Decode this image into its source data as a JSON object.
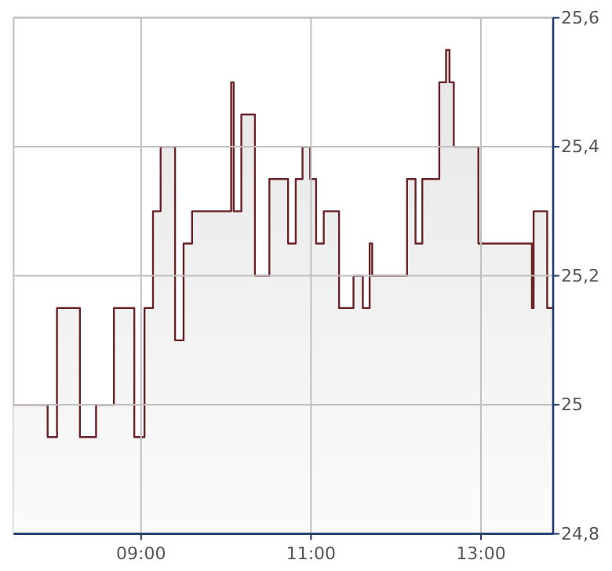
{
  "chart_data": {
    "type": "area",
    "x": [
      7.5,
      7.9,
      7.9,
      8.01,
      8.01,
      8.28,
      8.28,
      8.47,
      8.47,
      8.68,
      8.68,
      8.92,
      8.92,
      9.04,
      9.04,
      9.14,
      9.14,
      9.23,
      9.23,
      9.4,
      9.4,
      9.5,
      9.5,
      9.6,
      9.6,
      10.06,
      10.06,
      10.09,
      10.09,
      10.18,
      10.18,
      10.34,
      10.34,
      10.51,
      10.51,
      10.73,
      10.73,
      10.82,
      10.82,
      10.9,
      10.9,
      10.99,
      10.99,
      11.06,
      11.06,
      11.15,
      11.15,
      11.33,
      11.33,
      11.5,
      11.5,
      11.61,
      11.61,
      11.69,
      11.69,
      11.72,
      11.72,
      12.13,
      12.13,
      12.23,
      12.23,
      12.31,
      12.31,
      12.51,
      12.51,
      12.59,
      12.59,
      12.63,
      12.63,
      12.68,
      12.68,
      12.97,
      12.97,
      13.6,
      13.6,
      13.62,
      13.62,
      13.78,
      13.78,
      13.85
    ],
    "series": [
      {
        "color": "#6b2226",
        "values": [
          25.0,
          25.0,
          24.95,
          24.95,
          25.15,
          25.15,
          24.95,
          24.95,
          25.0,
          25.0,
          25.15,
          25.15,
          24.95,
          24.95,
          25.15,
          25.15,
          25.3,
          25.3,
          25.4,
          25.4,
          25.1,
          25.1,
          25.25,
          25.25,
          25.3,
          25.3,
          25.5,
          25.5,
          25.3,
          25.3,
          25.45,
          25.45,
          25.2,
          25.2,
          25.35,
          25.35,
          25.25,
          25.25,
          25.35,
          25.35,
          25.4,
          25.4,
          25.35,
          25.35,
          25.25,
          25.25,
          25.3,
          25.3,
          25.15,
          25.15,
          25.2,
          25.2,
          25.15,
          25.15,
          25.25,
          25.25,
          25.2,
          25.2,
          25.35,
          25.35,
          25.25,
          25.25,
          25.35,
          25.35,
          25.5,
          25.5,
          25.55,
          25.55,
          25.5,
          25.5,
          25.4,
          25.4,
          25.25,
          25.25,
          25.15,
          25.15,
          25.3,
          25.3,
          25.15,
          25.15
        ]
      }
    ],
    "xlim": [
      7.5,
      13.85
    ],
    "xticks": [
      {
        "value": 9,
        "label": "09:00"
      },
      {
        "value": 11,
        "label": "11:00"
      },
      {
        "value": 13,
        "label": "13:00"
      }
    ],
    "ylim": [
      24.8,
      25.6
    ],
    "yticks": [
      {
        "value": 24.8,
        "label": "24,8"
      },
      {
        "value": 25,
        "label": "25"
      },
      {
        "value": 25.2,
        "label": "25,2"
      },
      {
        "value": 25.4,
        "label": "25,4"
      },
      {
        "value": 25.6,
        "label": "25,6"
      }
    ],
    "grid": true
  }
}
